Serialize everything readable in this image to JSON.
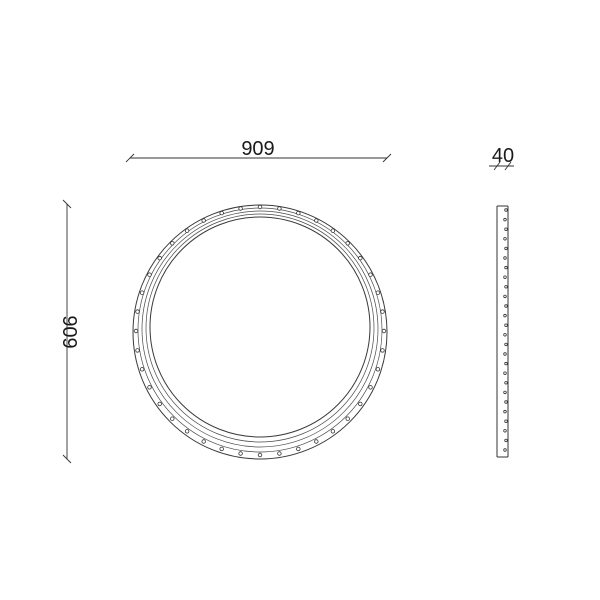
{
  "dimensions": {
    "width_label": "909",
    "height_label": "909",
    "depth_label": "40"
  },
  "colors": {
    "line": "#333333",
    "background": "#ffffff"
  }
}
